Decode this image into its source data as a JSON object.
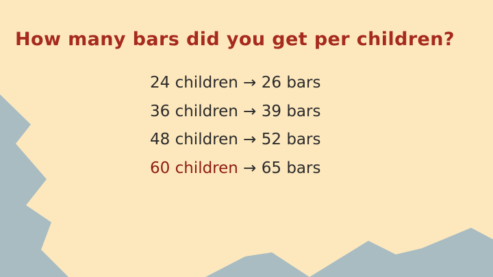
{
  "slide": {
    "title": "How many bars did you get per children?",
    "lines": [
      {
        "text": "24 children → 26 bars",
        "highlight": false
      },
      {
        "text": "36 children → 39 bars",
        "highlight": false
      },
      {
        "text": "48 children → 52 bars",
        "highlight": false
      }
    ],
    "highlight_line": {
      "children_text": "60 children",
      "rest_text": " → 65 bars"
    }
  },
  "colors": {
    "background": "#FDE8BE",
    "shape": "#A8BCC2",
    "title": "#A62A1E",
    "text": "#2A2A2A",
    "highlight": "#8E1C12"
  }
}
